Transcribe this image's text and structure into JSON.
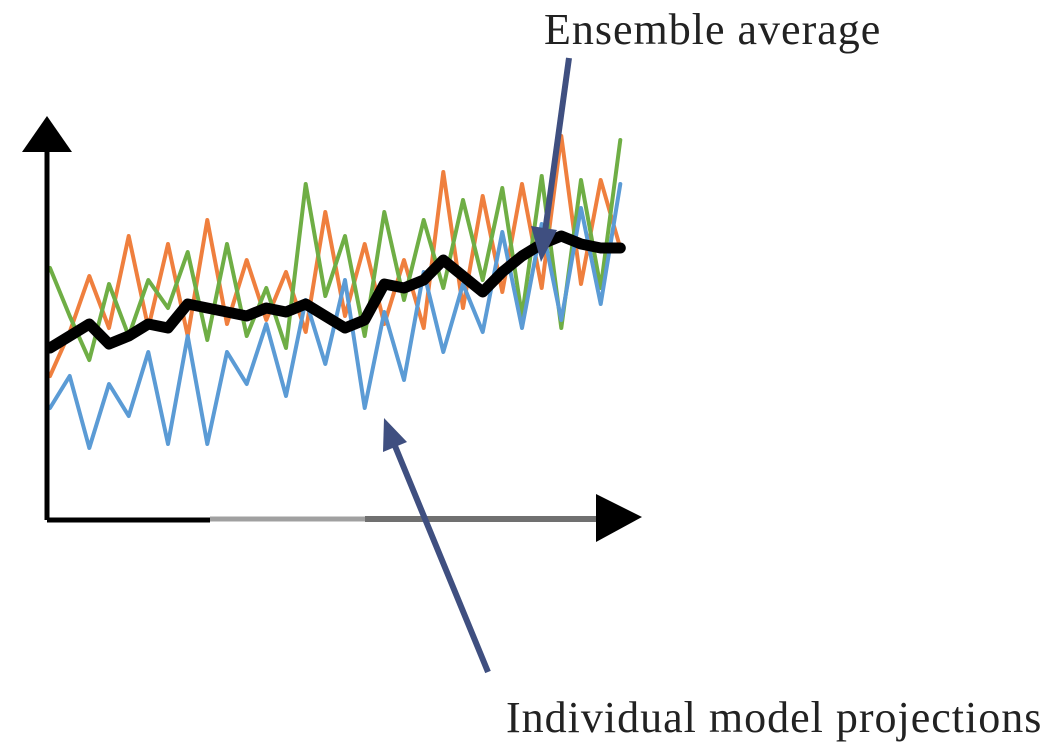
{
  "annotations": {
    "ensemble_label": "Ensemble average",
    "individual_label": "Individual model projections"
  },
  "colors": {
    "axis": "#000000",
    "axis_fade": "#a0a0a0",
    "arrow": "#3f4f80",
    "ensemble_line": "#000000",
    "series_orange": "#ef7f3e",
    "series_green": "#6fae45",
    "series_blue": "#5b9bd5",
    "label_text": "#222222"
  },
  "chart_data": {
    "type": "line",
    "title": "",
    "xlabel": "",
    "ylabel": "",
    "x": [
      0,
      1,
      2,
      3,
      4,
      5,
      6,
      7,
      8,
      9,
      10,
      11,
      12,
      13,
      14,
      15,
      16,
      17,
      18,
      19,
      20,
      21,
      22,
      23,
      24,
      25,
      26,
      27,
      28,
      29
    ],
    "xlim": [
      0,
      30
    ],
    "ylim": [
      0,
      10
    ],
    "series": [
      {
        "key": "orange",
        "values": [
          3.1,
          4.2,
          5.6,
          4.3,
          6.6,
          4.3,
          6.4,
          4.1,
          7.0,
          4.4,
          6.0,
          4.5,
          5.7,
          4.2,
          7.2,
          4.6,
          6.4,
          4.4,
          6.0,
          4.3,
          8.2,
          4.8,
          7.6,
          5.2,
          7.9,
          5.3,
          9.1,
          5.4,
          8.0,
          6.3
        ]
      },
      {
        "key": "green",
        "values": [
          5.8,
          4.6,
          3.5,
          5.4,
          4.1,
          5.5,
          4.8,
          6.2,
          4.0,
          6.4,
          4.1,
          5.3,
          3.8,
          7.9,
          5.1,
          6.6,
          4.1,
          7.2,
          5.0,
          7.0,
          5.3,
          7.5,
          5.5,
          7.8,
          4.6,
          8.1,
          4.3,
          8.0,
          5.3,
          9.0
        ]
      },
      {
        "key": "blue",
        "values": [
          2.3,
          3.1,
          1.3,
          2.9,
          2.1,
          3.7,
          1.4,
          4.1,
          1.4,
          3.7,
          2.9,
          4.4,
          2.6,
          5.0,
          3.4,
          5.5,
          2.3,
          4.7,
          3.0,
          5.7,
          3.7,
          5.4,
          4.2,
          6.7,
          4.3,
          6.9,
          4.5,
          7.3,
          4.9,
          7.9
        ]
      },
      {
        "key": "ensemble",
        "values": [
          3.8,
          4.1,
          4.4,
          3.9,
          4.1,
          4.4,
          4.3,
          4.9,
          4.8,
          4.7,
          4.6,
          4.8,
          4.7,
          4.9,
          4.6,
          4.3,
          4.5,
          5.4,
          5.3,
          5.5,
          6.0,
          5.6,
          5.2,
          5.7,
          6.1,
          6.4,
          6.6,
          6.4,
          6.3,
          6.3
        ]
      }
    ]
  }
}
